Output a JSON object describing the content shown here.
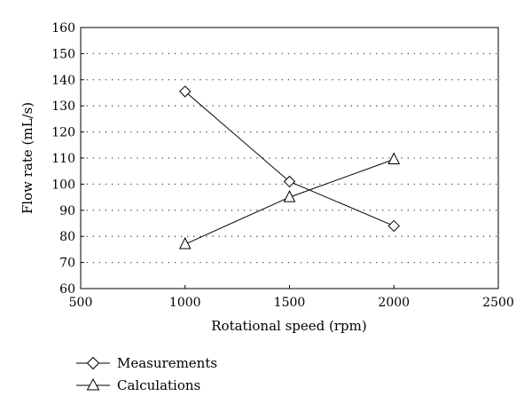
{
  "chart_data": {
    "type": "line",
    "xlabel": "Rotational speed (rpm)",
    "ylabel": "Flow rate (mL/s)",
    "xlim": [
      500,
      2500
    ],
    "ylim": [
      60,
      160
    ],
    "xticks": [
      500,
      1000,
      1500,
      2000,
      2500
    ],
    "yticks": [
      60,
      70,
      80,
      90,
      100,
      110,
      120,
      130,
      140,
      150,
      160
    ],
    "grid": "horizontal-dotted",
    "legend_position": "bottom-left",
    "series": [
      {
        "name": "Measurements",
        "marker": "diamond",
        "x": [
          1000,
          1500,
          2000
        ],
        "y": [
          135.5,
          101,
          84
        ]
      },
      {
        "name": "Calculations",
        "marker": "triangle",
        "x": [
          1000,
          1500,
          2000
        ],
        "y": [
          77,
          95,
          109.5
        ]
      }
    ]
  }
}
